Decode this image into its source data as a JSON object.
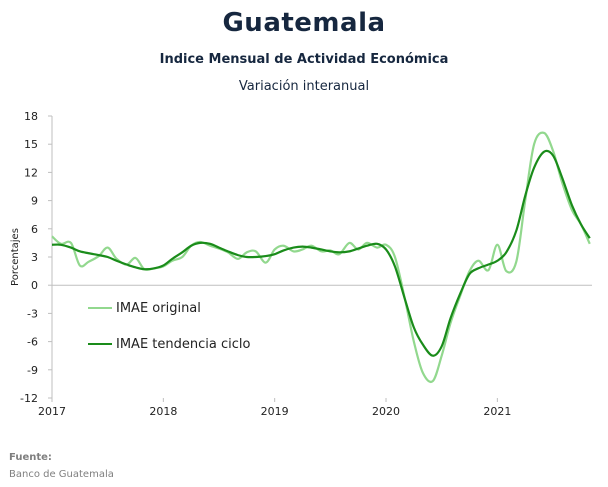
{
  "header": {
    "title": "Guatemala",
    "subtitle": "Indice Mensual de  Actividad Económica",
    "subtitle2": "Variación interanual"
  },
  "footer": {
    "source_label": "Fuente:",
    "source_text": "Banco de Guatemala"
  },
  "chart_data": {
    "type": "line",
    "ylabel": "Porcentajes",
    "ylim": [
      -12,
      18
    ],
    "yticks": [
      18,
      15,
      12,
      9,
      6,
      3,
      0,
      -3,
      -6,
      -9,
      -12
    ],
    "xlim": [
      2017.0,
      2021.85
    ],
    "xticks": [
      "2017",
      "2018",
      "2019",
      "2020",
      "2021"
    ],
    "legend_position": "lower-left",
    "grid": false,
    "series": [
      {
        "name": "IMAE original",
        "color": "#92d88e",
        "x": [
          2017.0,
          2017.08,
          2017.17,
          2017.25,
          2017.33,
          2017.42,
          2017.5,
          2017.58,
          2017.67,
          2017.75,
          2017.83,
          2017.92,
          2018.0,
          2018.08,
          2018.17,
          2018.25,
          2018.33,
          2018.42,
          2018.5,
          2018.58,
          2018.67,
          2018.75,
          2018.83,
          2018.92,
          2019.0,
          2019.08,
          2019.17,
          2019.25,
          2019.33,
          2019.42,
          2019.5,
          2019.58,
          2019.67,
          2019.75,
          2019.83,
          2019.92,
          2020.0,
          2020.08,
          2020.17,
          2020.25,
          2020.33,
          2020.42,
          2020.5,
          2020.58,
          2020.67,
          2020.75,
          2020.83,
          2020.92,
          2021.0,
          2021.08,
          2021.17,
          2021.25,
          2021.33,
          2021.42,
          2021.5,
          2021.58,
          2021.67,
          2021.75,
          2021.83
        ],
        "values": [
          5.2,
          4.4,
          4.5,
          2.1,
          2.5,
          3.1,
          4.0,
          2.8,
          2.2,
          2.9,
          1.7,
          1.8,
          2.0,
          2.6,
          3.0,
          4.2,
          4.6,
          4.2,
          3.9,
          3.5,
          2.8,
          3.5,
          3.6,
          2.4,
          3.8,
          4.2,
          3.6,
          3.8,
          4.2,
          3.6,
          3.7,
          3.3,
          4.5,
          3.8,
          4.5,
          4.0,
          4.3,
          3.0,
          -1.5,
          -6.0,
          -9.3,
          -10.2,
          -7.5,
          -4.0,
          -1.0,
          1.5,
          2.6,
          1.6,
          4.3,
          1.5,
          2.5,
          9.0,
          15.0,
          16.2,
          14.3,
          11.0,
          8.0,
          6.5,
          4.4
        ]
      },
      {
        "name": "IMAE tendencia ciclo",
        "color": "#1a8c1a",
        "x": [
          2017.0,
          2017.08,
          2017.17,
          2017.25,
          2017.33,
          2017.42,
          2017.5,
          2017.58,
          2017.67,
          2017.75,
          2017.83,
          2017.92,
          2018.0,
          2018.08,
          2018.17,
          2018.25,
          2018.33,
          2018.42,
          2018.5,
          2018.58,
          2018.67,
          2018.75,
          2018.83,
          2018.92,
          2019.0,
          2019.08,
          2019.17,
          2019.25,
          2019.33,
          2019.42,
          2019.5,
          2019.58,
          2019.67,
          2019.75,
          2019.83,
          2019.92,
          2020.0,
          2020.08,
          2020.17,
          2020.25,
          2020.33,
          2020.42,
          2020.5,
          2020.58,
          2020.67,
          2020.75,
          2020.83,
          2020.92,
          2021.0,
          2021.08,
          2021.17,
          2021.25,
          2021.33,
          2021.42,
          2021.5,
          2021.58,
          2021.67,
          2021.75,
          2021.83
        ],
        "values": [
          4.3,
          4.3,
          4.0,
          3.6,
          3.4,
          3.2,
          3.0,
          2.6,
          2.2,
          1.9,
          1.7,
          1.8,
          2.1,
          2.8,
          3.5,
          4.2,
          4.5,
          4.4,
          4.0,
          3.6,
          3.2,
          3.0,
          3.0,
          3.1,
          3.3,
          3.7,
          4.0,
          4.1,
          4.0,
          3.8,
          3.6,
          3.5,
          3.6,
          3.9,
          4.2,
          4.4,
          3.8,
          2.0,
          -1.5,
          -4.5,
          -6.3,
          -7.5,
          -6.5,
          -3.5,
          -0.8,
          1.2,
          1.8,
          2.2,
          2.6,
          3.5,
          5.8,
          9.5,
          12.5,
          14.2,
          13.8,
          11.5,
          8.5,
          6.5,
          5.0
        ]
      }
    ]
  }
}
